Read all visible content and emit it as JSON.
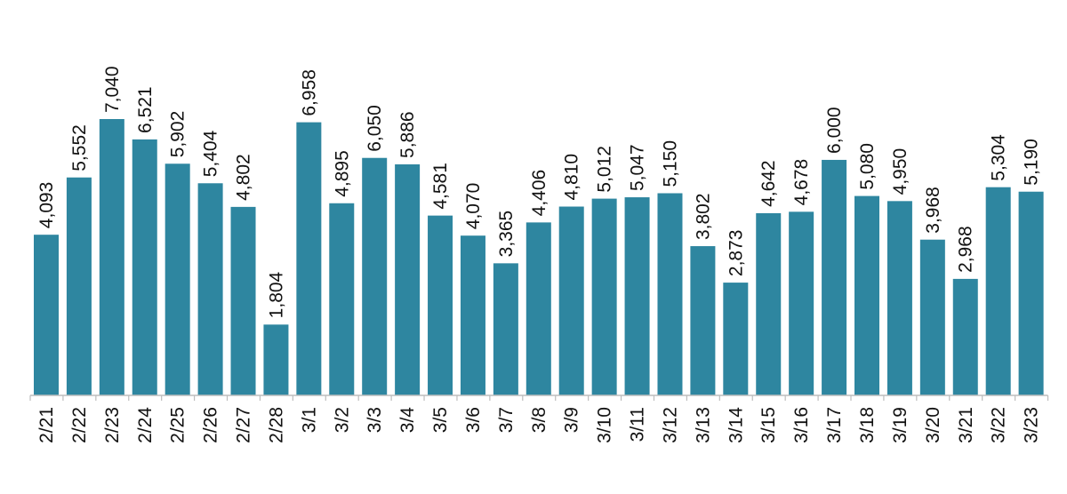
{
  "chart_data": {
    "type": "bar",
    "categories": [
      "2/21",
      "2/22",
      "2/23",
      "2/24",
      "2/25",
      "2/26",
      "2/27",
      "2/28",
      "3/1",
      "3/2",
      "3/3",
      "3/4",
      "3/5",
      "3/6",
      "3/7",
      "3/8",
      "3/9",
      "3/10",
      "3/11",
      "3/12",
      "3/13",
      "3/14",
      "3/15",
      "3/16",
      "3/17",
      "3/18",
      "3/19",
      "3/20",
      "3/21",
      "3/22",
      "3/23"
    ],
    "values": [
      4093,
      5552,
      7040,
      6521,
      5902,
      5404,
      4802,
      1804,
      6958,
      4895,
      6050,
      5886,
      4581,
      4070,
      3365,
      4406,
      4810,
      5012,
      5047,
      5150,
      3802,
      2873,
      4642,
      4678,
      6000,
      5080,
      4950,
      3968,
      2968,
      5304,
      5190
    ],
    "value_labels": [
      "4,093",
      "5,552",
      "7,040",
      "6,521",
      "5,902",
      "5,404",
      "4,802",
      "1,804",
      "6,958",
      "4,895",
      "6,050",
      "5,886",
      "4,581",
      "4,070",
      "3,365",
      "4,406",
      "4,810",
      "5,012",
      "5,047",
      "5,150",
      "3,802",
      "2,873",
      "4,642",
      "4,678",
      "6,000",
      "5,080",
      "4,950",
      "3,968",
      "2,968",
      "5,304",
      "5,190"
    ],
    "title": "",
    "xlabel": "",
    "ylabel": "",
    "ylim": [
      0,
      7040
    ],
    "grid": false,
    "legend": "none",
    "bar_color": "#2e86a0"
  }
}
